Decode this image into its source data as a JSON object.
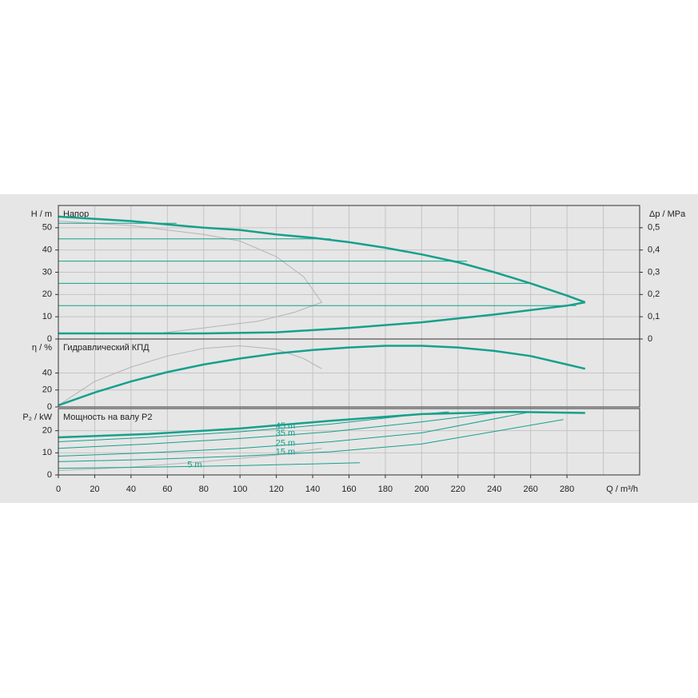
{
  "chart_data": [
    {
      "type": "line",
      "title": "Напор",
      "ylabel": "H / m",
      "y2label": "Δp / MPa",
      "xlim": [
        0,
        320
      ],
      "xticks": [
        0,
        20,
        40,
        60,
        80,
        100,
        120,
        140,
        160,
        180,
        200,
        220,
        240,
        260,
        280,
        300
      ],
      "ylim": [
        0,
        60
      ],
      "yticks": [
        0,
        10,
        20,
        30,
        40,
        50
      ],
      "y2lim": [
        0,
        0.6
      ],
      "y2ticks": [
        0,
        {
          "value": 0.1,
          "label": "0,1"
        },
        {
          "value": 0.2,
          "label": "0,2"
        },
        {
          "value": 0.3,
          "label": "0,3"
        },
        {
          "value": 0.4,
          "label": "0,4"
        },
        {
          "value": 0.5,
          "label": "0,5"
        }
      ],
      "grid": true,
      "series": [
        {
          "color": "#b4b4b4",
          "width": 1,
          "x": [
            0,
            40,
            80,
            100,
            120,
            135,
            145,
            130,
            110,
            90,
            70,
            55
          ],
          "values": [
            53,
            51,
            47,
            44,
            37,
            28,
            16.5,
            12,
            8,
            6,
            4,
            2.5
          ]
        },
        {
          "color": "#16a08c",
          "width": 1,
          "x": [
            0,
            65
          ],
          "values": [
            52,
            52
          ]
        },
        {
          "color": "#16a08c",
          "width": 1,
          "x": [
            0,
            150
          ],
          "values": [
            45,
            45
          ]
        },
        {
          "color": "#16a08c",
          "width": 1,
          "x": [
            0,
            225
          ],
          "values": [
            35,
            35
          ]
        },
        {
          "color": "#16a08c",
          "width": 1,
          "x": [
            0,
            260
          ],
          "values": [
            25,
            25
          ]
        },
        {
          "color": "#16a08c",
          "width": 1,
          "x": [
            0,
            285
          ],
          "values": [
            15,
            15
          ]
        },
        {
          "color": "#16a08c",
          "width": 2.5,
          "x": [
            0,
            20,
            40,
            60,
            80,
            100,
            120,
            140,
            160,
            180,
            200,
            220,
            240,
            260,
            280,
            290
          ],
          "values": [
            55,
            54,
            53,
            51.5,
            50,
            49,
            47,
            45.5,
            43.5,
            41,
            38,
            34.5,
            30,
            25,
            19.5,
            16.5
          ]
        },
        {
          "color": "#16a08c",
          "width": 2.5,
          "x": [
            0,
            40,
            80,
            120,
            160,
            200,
            240,
            280,
            290
          ],
          "values": [
            2.5,
            2.5,
            2.5,
            3,
            5,
            7.5,
            11,
            15,
            16.5
          ]
        }
      ]
    },
    {
      "type": "line",
      "title": "Гидравлический КПД",
      "ylabel": "η / %",
      "xlim": [
        0,
        320
      ],
      "xticks": [
        0,
        20,
        40,
        60,
        80,
        100,
        120,
        140,
        160,
        180,
        200,
        220,
        240,
        260,
        280,
        300
      ],
      "ylim": [
        0,
        80
      ],
      "yticks": [
        0,
        20,
        40
      ],
      "grid": true,
      "series": [
        {
          "color": "#b4b4b4",
          "width": 1,
          "x": [
            0,
            20,
            40,
            60,
            80,
            100,
            120,
            135,
            145
          ],
          "values": [
            2,
            30,
            47,
            60,
            69,
            72,
            68,
            57,
            45
          ]
        },
        {
          "color": "#16a08c",
          "width": 2.5,
          "x": [
            0,
            20,
            40,
            60,
            80,
            100,
            120,
            140,
            160,
            180,
            200,
            220,
            240,
            260,
            280,
            290
          ],
          "values": [
            2,
            17,
            30,
            41,
            50,
            57,
            63,
            67,
            70,
            72,
            72,
            70,
            66,
            60,
            50,
            45
          ]
        }
      ]
    },
    {
      "type": "line",
      "title": "Мощность на валу P2",
      "ylabel": "P₂ / kW",
      "xlabel": "Q / m³/h",
      "xlim": [
        0,
        320
      ],
      "xticks": [
        0,
        20,
        40,
        60,
        80,
        100,
        120,
        140,
        160,
        180,
        200,
        220,
        240,
        260,
        280,
        300
      ],
      "xticklabels": [
        0,
        20,
        40,
        60,
        80,
        100,
        120,
        140,
        160,
        180,
        200,
        220,
        240,
        260,
        280
      ],
      "ylim": [
        0,
        30
      ],
      "yticks": [
        0,
        10,
        20
      ],
      "grid": true,
      "series": [
        {
          "color": "#b4b4b4",
          "width": 1,
          "x": [
            0,
            40,
            80,
            120,
            145
          ],
          "values": [
            2,
            3.5,
            6,
            9,
            12
          ]
        },
        {
          "name": "45 m",
          "color": "#16a08c",
          "width": 1,
          "x": [
            0,
            50,
            100,
            150,
            200,
            215
          ],
          "values": [
            15,
            17,
            19.5,
            23,
            27.5,
            28.5
          ]
        },
        {
          "name": "35 m",
          "color": "#16a08c",
          "width": 1,
          "x": [
            0,
            50,
            100,
            150,
            200,
            245
          ],
          "values": [
            12,
            14,
            16.5,
            19.5,
            24,
            28.5
          ]
        },
        {
          "name": "25 m",
          "color": "#16a08c",
          "width": 1,
          "x": [
            0,
            50,
            100,
            150,
            200,
            260
          ],
          "values": [
            8.5,
            10,
            12,
            15,
            19,
            28.5
          ]
        },
        {
          "name": "15 m",
          "color": "#16a08c",
          "width": 1,
          "x": [
            0,
            50,
            100,
            150,
            200,
            278
          ],
          "values": [
            6,
            7,
            8.5,
            10.5,
            14,
            25
          ]
        },
        {
          "name": "5 m",
          "color": "#16a08c",
          "width": 1,
          "x": [
            0,
            50,
            100,
            166
          ],
          "values": [
            3,
            3.5,
            4.2,
            5.5
          ]
        },
        {
          "color": "#16a08c",
          "width": 2.5,
          "x": [
            0,
            50,
            100,
            150,
            200,
            250,
            290
          ],
          "values": [
            17,
            18.5,
            21,
            24.5,
            27.5,
            28.5,
            28
          ]
        }
      ]
    }
  ]
}
